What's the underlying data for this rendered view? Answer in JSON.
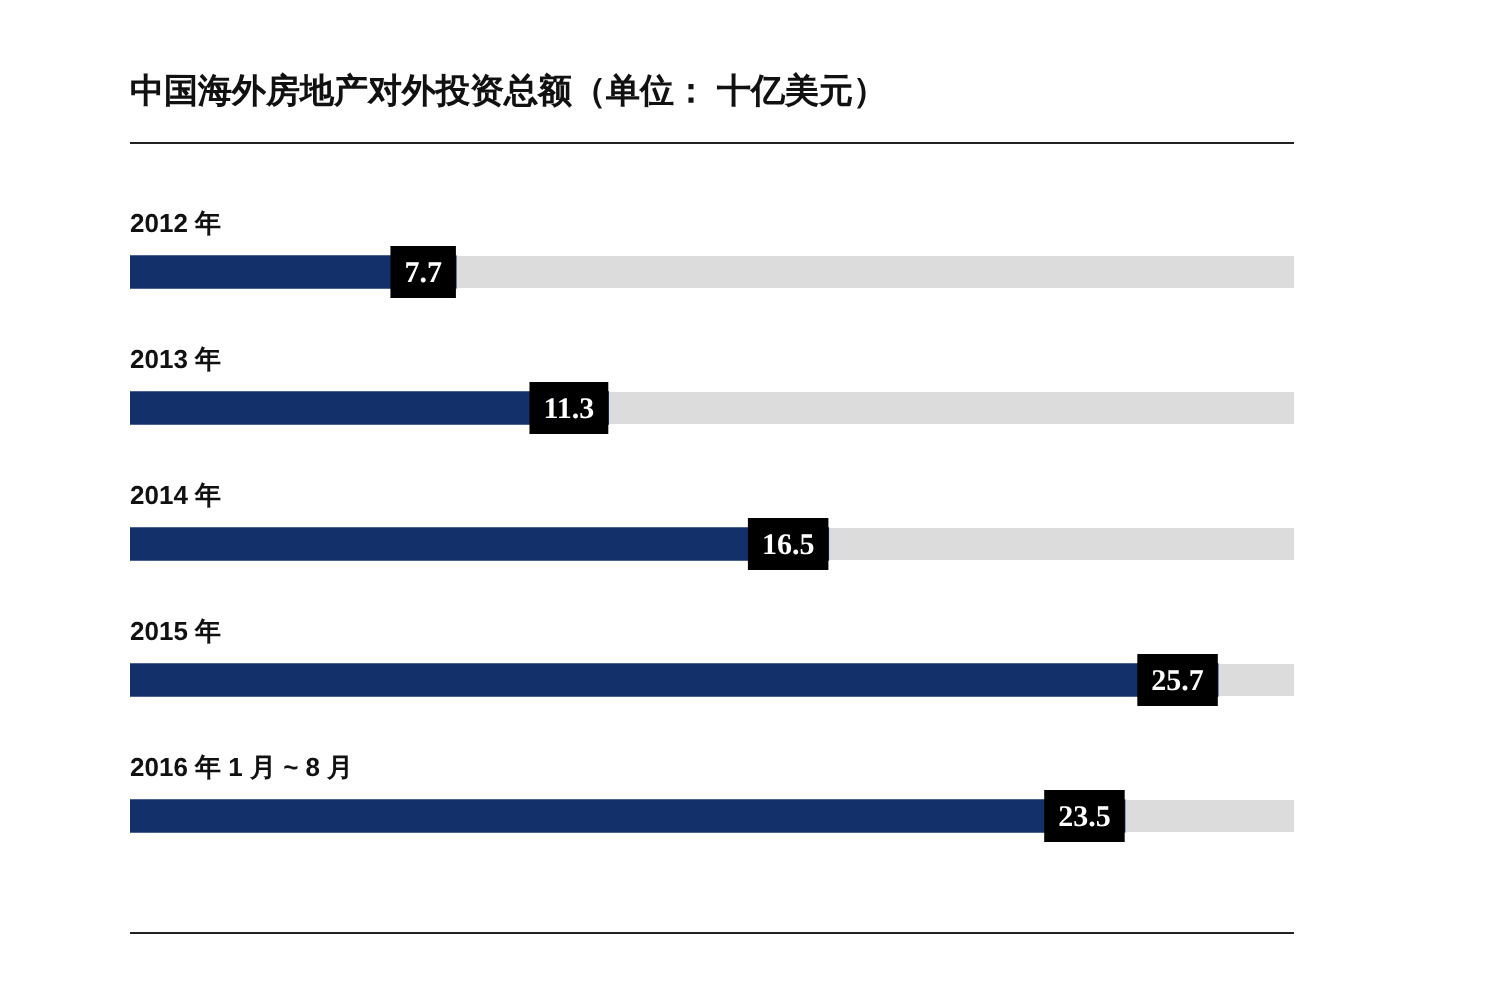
{
  "chart_data": {
    "type": "bar",
    "orientation": "horizontal",
    "title": "中国海外房地产对外投资总额（单位： 十亿美元）",
    "categories": [
      "2012 年",
      "2013 年",
      "2014 年",
      "2015 年",
      "2016 年 1 月 ~ 8 月"
    ],
    "values": [
      7.7,
      11.3,
      16.5,
      25.7,
      23.5
    ],
    "color": "#13306b",
    "xlim": [
      0,
      27.5
    ],
    "tick_labels": false,
    "data_labels": true
  }
}
